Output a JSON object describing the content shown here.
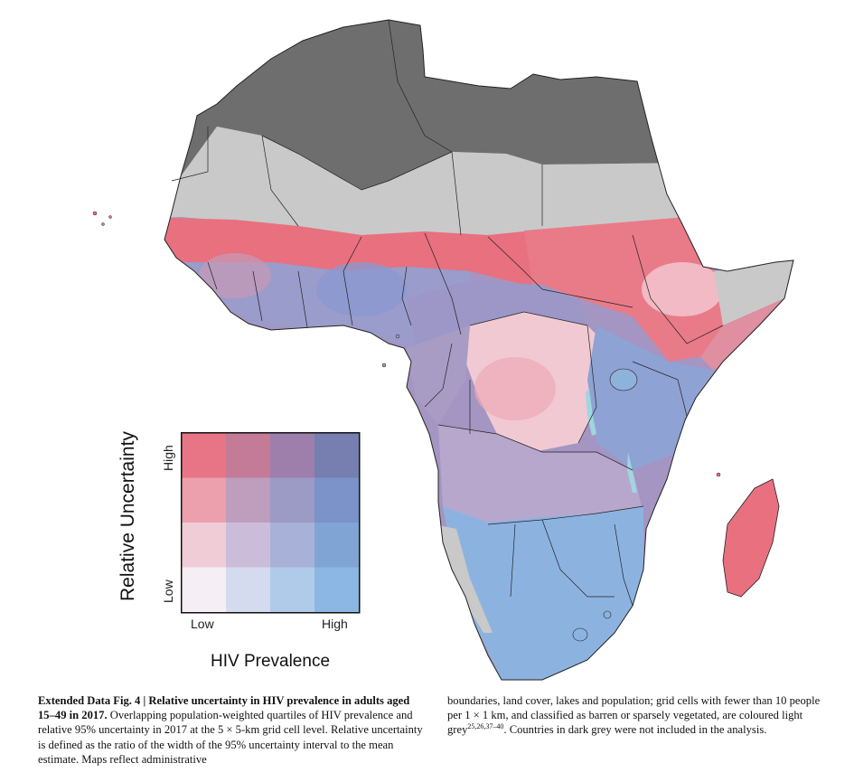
{
  "figure": {
    "legend": {
      "y_axis_label": "Relative Uncertainty",
      "y_low": "Low",
      "y_high": "High",
      "x_axis_label": "HIV Prevalence",
      "x_low": "Low",
      "x_high": "High",
      "matrix_colors": [
        [
          "#e87585",
          "#c37b98",
          "#9e7fac",
          "#767fb0"
        ],
        [
          "#eca0ad",
          "#bf9dbd",
          "#9b9bc6",
          "#7b93c9"
        ],
        [
          "#f0ccd7",
          "#cbbdd9",
          "#a8b1d8",
          "#80a5d4"
        ],
        [
          "#f6eef5",
          "#d4dbee",
          "#b0cbea",
          "#8cb6e3"
        ]
      ]
    },
    "map_colors": {
      "excluded_dark_grey": "#6e6e6e",
      "sparse_light_grey": "#c9c9c9",
      "high_uncertainty_low_prev": "#e8707f",
      "low_uncertainty_high_prev": "#8cb3e0",
      "mixed_purple": "#a495c2",
      "pale_pink": "#f0c9d3",
      "lakes": "#9fd6df",
      "border": "#222222"
    }
  },
  "caption": {
    "label": "Extended Data Fig. 4 | Relative uncertainty in HIV prevalence in adults aged 15–49 in 2017.",
    "body_left": "Overlapping population-weighted quartiles of HIV prevalence and relative 95% uncertainty in 2017 at the 5 × 5-km grid cell level. Relative uncertainty is defined as the ratio of the width of the 95% uncertainty interval to the mean estimate. Maps reflect administrative",
    "body_right_1": "boundaries, land cover, lakes and population; grid cells with fewer than 10 people per 1 × 1 km, and classified as barren or sparsely vegetated, are coloured light grey",
    "refs": "25,26,37–40",
    "body_right_2": ". Countries in dark grey were not included in the analysis."
  }
}
